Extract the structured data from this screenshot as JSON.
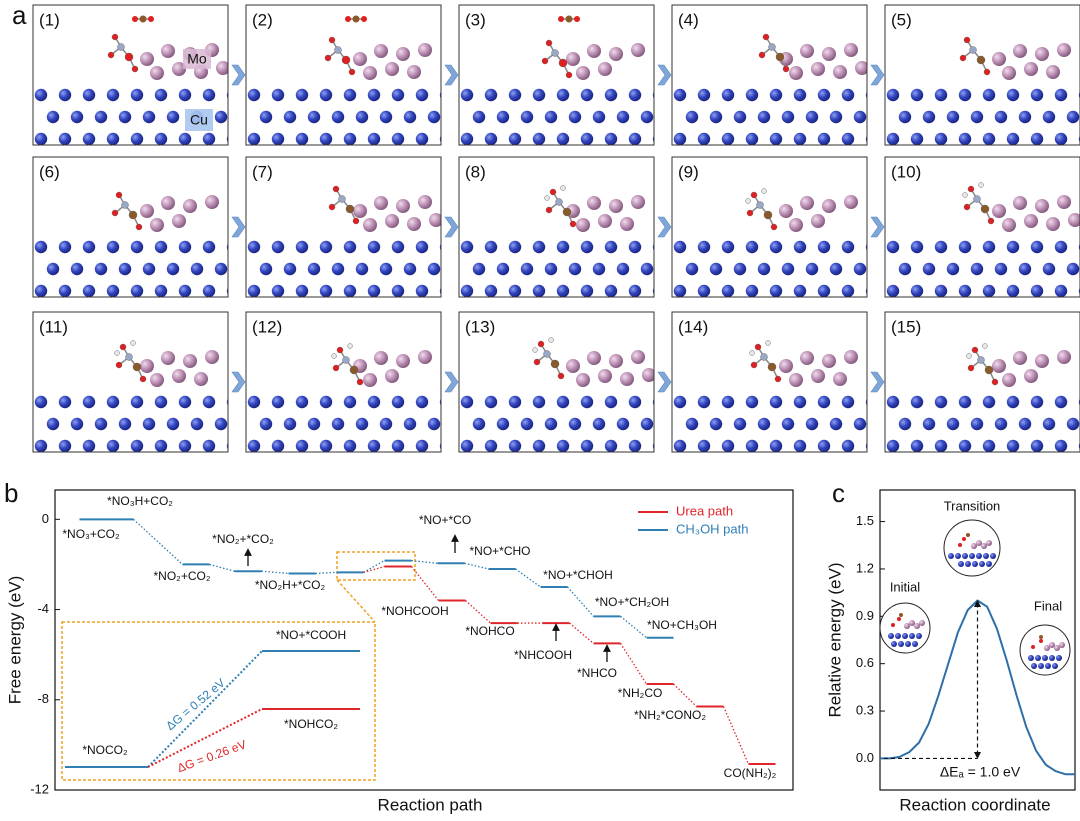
{
  "panel_a": {
    "label": "a",
    "steps": [
      "(1)",
      "(2)",
      "(3)",
      "(4)",
      "(5)",
      "(6)",
      "(7)",
      "(8)",
      "(9)",
      "(10)",
      "(11)",
      "(12)",
      "(13)",
      "(14)",
      "(15)"
    ],
    "atom_labels": [
      "Mo",
      "Cu"
    ]
  },
  "chart_data": [
    {
      "type": "levels",
      "panel": "b",
      "ylabel": "Free energy (eV)",
      "xlabel": "Reaction path",
      "ylim": [
        -12,
        1.3
      ],
      "yticks": [
        0,
        -4,
        -8,
        -12
      ],
      "legend": "upper right",
      "series": [
        {
          "name": "Urea path",
          "color": "#e0262b",
          "states": [
            "*NOHCO₂",
            "*NOHCOOH",
            "*NOHCO",
            "*NHCOOH",
            "*NHCO",
            "*NH₂CO",
            "*NH₂*CONO₂",
            "CO(NH₂)₂"
          ],
          "values": [
            -2.09,
            -3.6,
            -4.6,
            -4.6,
            -5.5,
            -7.3,
            -8.3,
            -10.85
          ]
        },
        {
          "name": "CH₃OH path",
          "color": "#2f7fb5",
          "states": [
            "*NO₃+CO₂",
            "*NO₃H+CO₂",
            "*NO₂+CO₂",
            "*NO₂+*CO₂",
            "*NO₂H+*CO₂",
            "*NOCO₂",
            "*NO+*COOH",
            "*NO+*CO",
            "*NO+*CHO",
            "*NO+*CHOH",
            "*NO+*CH₂OH",
            "*NO+CH₃OH"
          ],
          "values": [
            0,
            0,
            -2.0,
            -2.3,
            -2.4,
            -2.35,
            -1.83,
            -1.95,
            -2.2,
            -3.0,
            -4.3,
            -5.25
          ]
        }
      ],
      "inset_annotations": [
        "ΔG = 0.52 eV",
        "ΔG = 0.26 eV"
      ]
    },
    {
      "type": "line",
      "panel": "c",
      "ylabel": "Relative energy (eV)",
      "xlabel": "Reaction coordinate",
      "xlim": [
        0,
        20
      ],
      "ylim": [
        -0.2,
        1.7
      ],
      "yticks": [
        {
          "value": 0,
          "label": "0.0"
        },
        0.3,
        0.6,
        0.9,
        1.2,
        1.5
      ],
      "color": "#2e6fa8",
      "x": [
        0,
        1,
        2,
        3,
        4,
        5,
        6,
        7,
        8,
        9,
        10,
        11,
        12,
        13,
        14,
        15,
        16,
        17,
        18,
        19,
        20
      ],
      "values": [
        0,
        0,
        0.01,
        0.04,
        0.1,
        0.22,
        0.4,
        0.6,
        0.8,
        0.94,
        1.0,
        0.96,
        0.82,
        0.62,
        0.4,
        0.2,
        0.05,
        -0.04,
        -0.08,
        -0.1,
        -0.1
      ],
      "annotations": [
        "Transition",
        "Initial",
        "Final",
        "ΔEₐ = 1.0 eV"
      ]
    }
  ]
}
